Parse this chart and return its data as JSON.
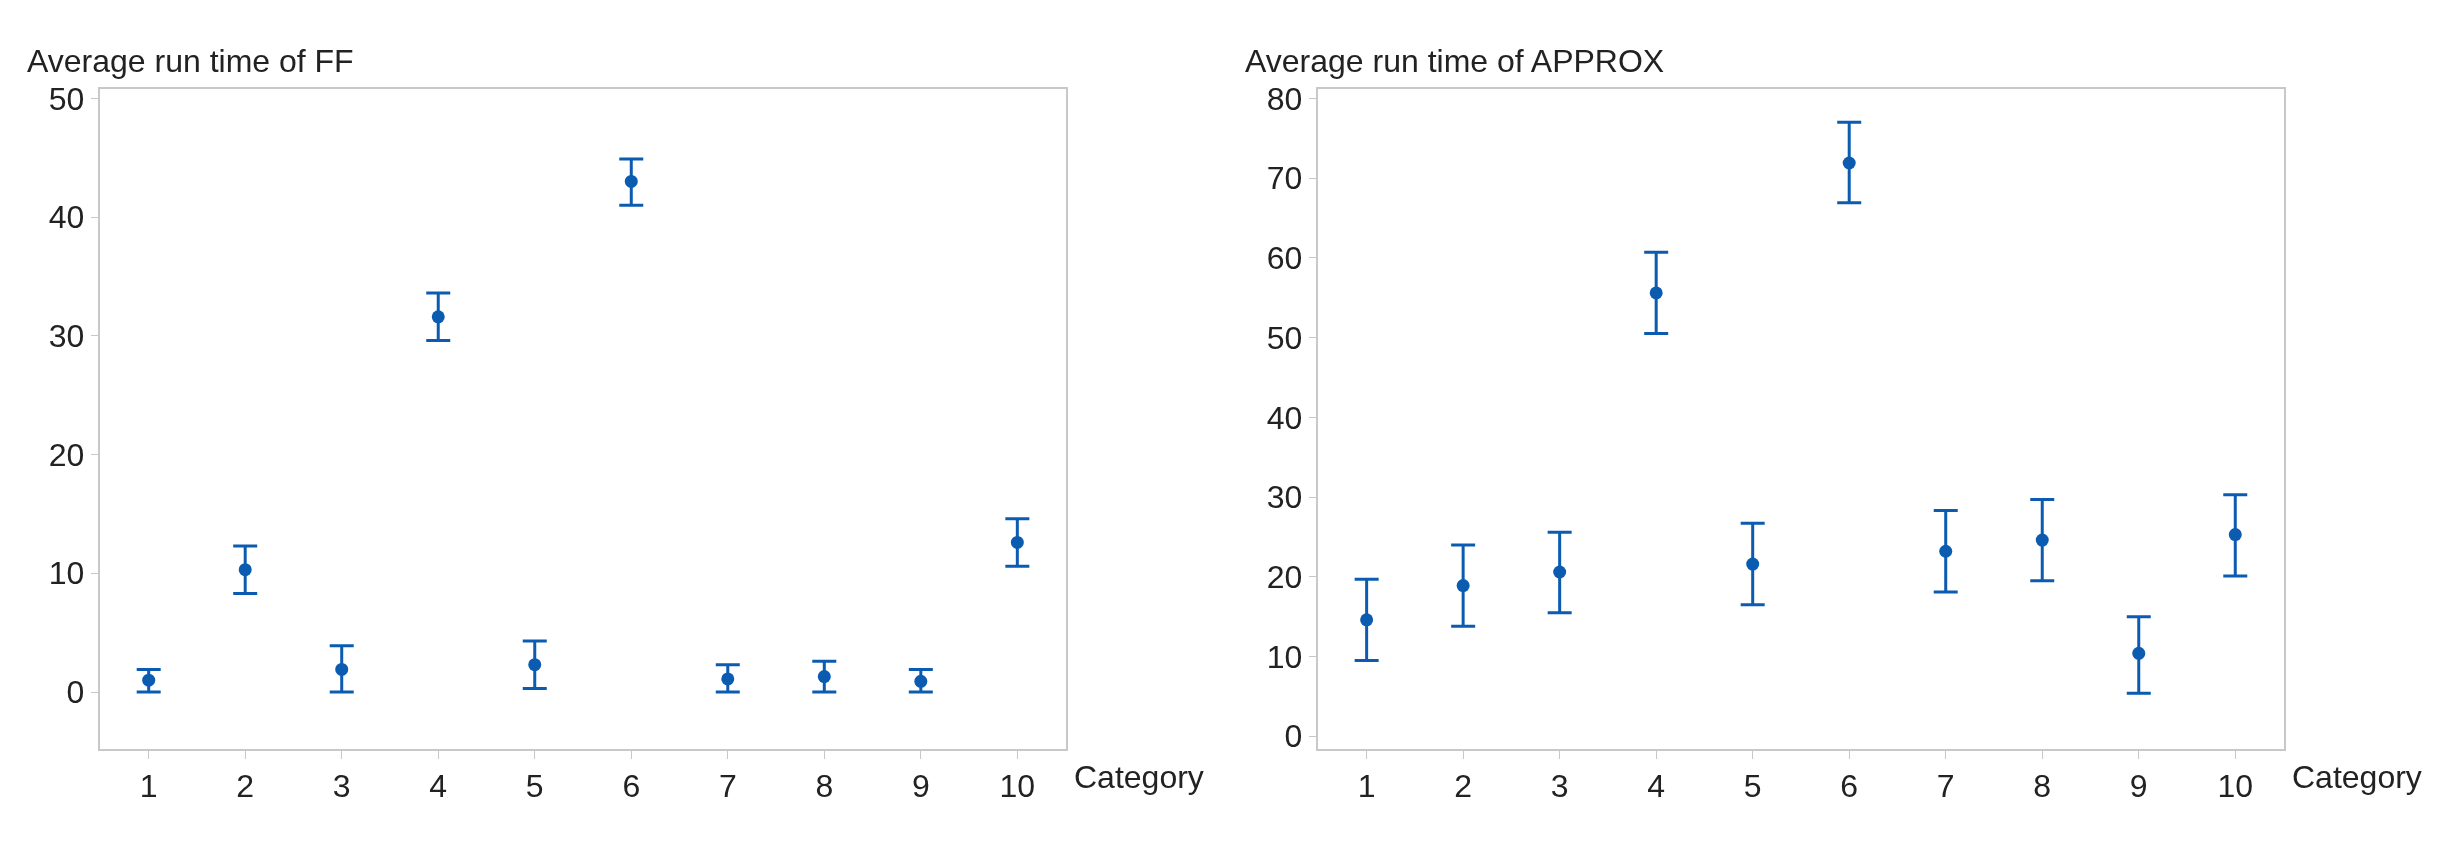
{
  "chart_data": [
    {
      "type": "scatter",
      "title": "Average run time of FF",
      "xlabel": "Category",
      "categories": [
        "1",
        "2",
        "3",
        "4",
        "5",
        "6",
        "7",
        "8",
        "9",
        "10"
      ],
      "series": [
        {
          "color": "#0b5cb0",
          "values": [
            1.0,
            10.3,
            1.9,
            31.6,
            2.3,
            43.0,
            1.1,
            1.3,
            0.9,
            12.6
          ],
          "errors": [
            [
              0,
              1.9
            ],
            [
              8.3,
              12.3
            ],
            [
              0,
              3.9
            ],
            [
              29.6,
              33.6
            ],
            [
              0.3,
              4.3
            ],
            [
              41.0,
              44.9
            ],
            [
              0,
              2.3
            ],
            [
              0,
              2.6
            ],
            [
              0,
              1.9
            ],
            [
              10.6,
              14.6
            ]
          ]
        }
      ],
      "ylim": [
        -4.8,
        50.8
      ],
      "yticks": [
        0,
        10,
        20,
        30,
        40,
        50
      ],
      "marker": "circle"
    },
    {
      "type": "scatter",
      "title": "Average run time of APPROX",
      "xlabel": "Category",
      "categories": [
        "1",
        "2",
        "3",
        "4",
        "5",
        "6",
        "7",
        "8",
        "9",
        "10"
      ],
      "series": [
        {
          "color": "#0b5cb0",
          "values": [
            14.6,
            18.9,
            20.6,
            55.6,
            21.6,
            71.9,
            23.2,
            24.6,
            10.4,
            25.3
          ],
          "errors": [
            [
              9.5,
              19.7
            ],
            [
              13.8,
              24.0
            ],
            [
              15.5,
              25.6
            ],
            [
              50.5,
              60.7
            ],
            [
              16.5,
              26.7
            ],
            [
              66.9,
              77.0
            ],
            [
              18.1,
              28.3
            ],
            [
              19.5,
              29.7
            ],
            [
              5.4,
              15.0
            ],
            [
              20.1,
              30.3
            ]
          ]
        }
      ],
      "ylim": [
        -1.6,
        81.2
      ],
      "yticks": [
        0,
        10,
        20,
        30,
        40,
        50,
        60,
        70,
        80
      ],
      "marker": "circle"
    }
  ]
}
